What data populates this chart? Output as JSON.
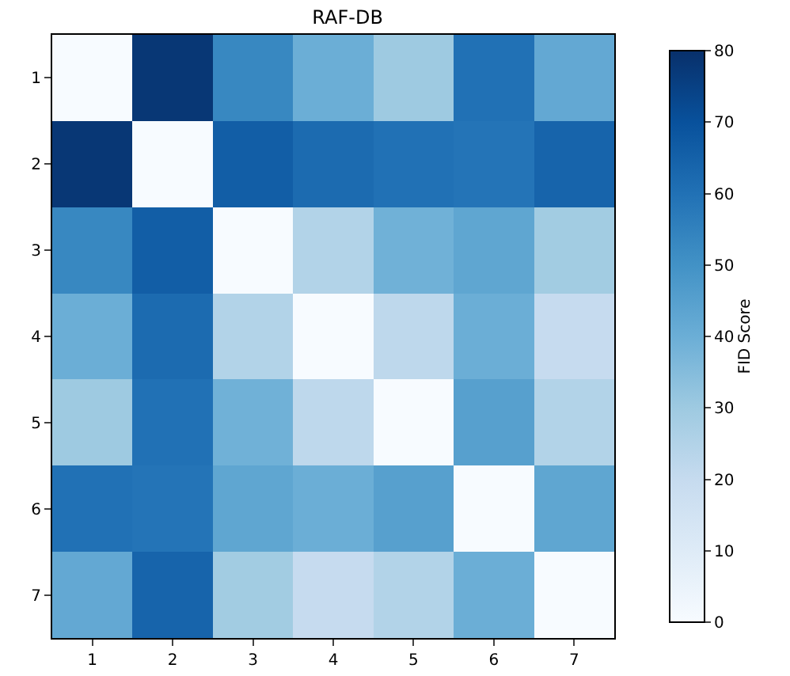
{
  "chart_data": {
    "type": "heatmap",
    "title": "RAF-DB",
    "clabel": "FID Score",
    "categories": [
      "1",
      "2",
      "3",
      "4",
      "5",
      "6",
      "7"
    ],
    "y_categories": [
      "1",
      "2",
      "3",
      "4",
      "5",
      "6",
      "7"
    ],
    "cells": [
      [
        0,
        78,
        53,
        40,
        30,
        60,
        42
      ],
      [
        78,
        0,
        66,
        62,
        60,
        59,
        64
      ],
      [
        53,
        66,
        0,
        25,
        39,
        43,
        29
      ],
      [
        40,
        62,
        25,
        0,
        22,
        40,
        20
      ],
      [
        30,
        60,
        39,
        22,
        0,
        45,
        25
      ],
      [
        60,
        59,
        43,
        40,
        45,
        0,
        43
      ],
      [
        42,
        64,
        29,
        20,
        25,
        40,
        0
      ]
    ],
    "clim": [
      0,
      80
    ],
    "cticks": [
      0,
      10,
      20,
      30,
      40,
      50,
      60,
      70,
      80
    ]
  }
}
